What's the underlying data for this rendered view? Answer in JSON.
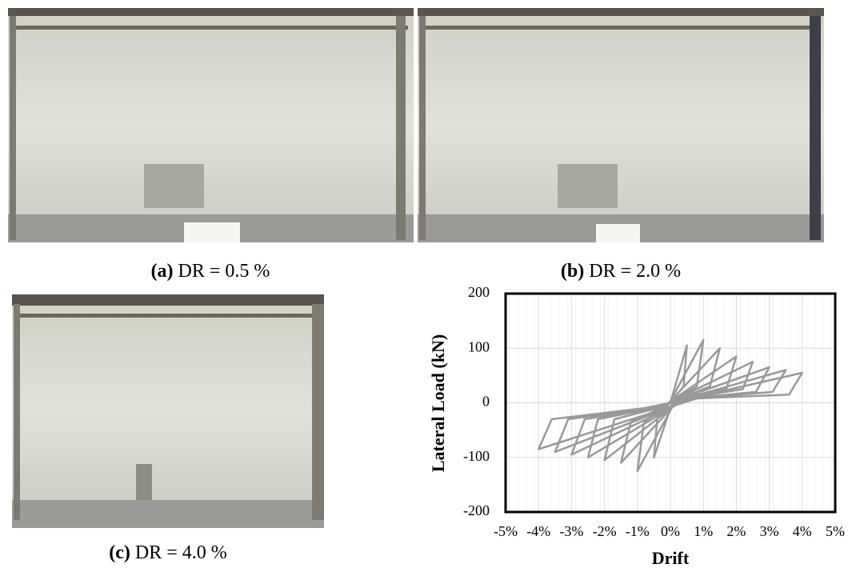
{
  "figure": {
    "panels": [
      {
        "label": "(a)",
        "caption": "DR = 0.5 %"
      },
      {
        "label": "(b)",
        "caption": "DR = 2.0 %"
      },
      {
        "label": "(c)",
        "caption": "DR = 4.0 %"
      }
    ]
  },
  "chart_data": {
    "type": "line",
    "xlabel": "Drift",
    "ylabel": "Lateral Load (kN)",
    "color": "#999999",
    "grid": true,
    "xlim": [
      -5,
      5
    ],
    "ylim": [
      -200,
      200
    ],
    "xticks": [
      {
        "value": -5,
        "label": "-5%"
      },
      {
        "value": -4,
        "label": "-4%"
      },
      {
        "value": -3,
        "label": "-3%"
      },
      {
        "value": -2,
        "label": "-2%"
      },
      {
        "value": -1,
        "label": "-1%"
      },
      {
        "value": 0,
        "label": "0%"
      },
      {
        "value": 1,
        "label": "1%"
      },
      {
        "value": 2,
        "label": "2%"
      },
      {
        "value": 3,
        "label": "3%"
      },
      {
        "value": 4,
        "label": "4%"
      },
      {
        "value": 5,
        "label": "5%"
      }
    ],
    "yticks": [
      -200,
      -100,
      0,
      100,
      200
    ],
    "x": [
      0,
      0.5,
      0.4,
      0.1,
      -0.5,
      -0.4,
      -0.1,
      1,
      0.8,
      0.2,
      -1,
      -0.8,
      -0.2,
      1.5,
      1.2,
      0.3,
      -1.5,
      -1.2,
      -0.3,
      2,
      1.7,
      0.4,
      -2,
      -1.7,
      -0.4,
      2.5,
      2.2,
      0.5,
      -2.5,
      -2.2,
      -0.5,
      3,
      2.6,
      0.6,
      -3,
      -2.6,
      -0.6,
      3.5,
      3.1,
      0.7,
      -3.5,
      -3.1,
      -0.7,
      4,
      3.6,
      0.8,
      -4,
      -3.6,
      -0.8,
      0
    ],
    "values": [
      0,
      105,
      30,
      8,
      -100,
      -30,
      -8,
      115,
      30,
      8,
      -125,
      -35,
      -10,
      100,
      30,
      8,
      -110,
      -35,
      -10,
      85,
      25,
      8,
      -105,
      -30,
      -10,
      75,
      25,
      8,
      -100,
      -30,
      -10,
      65,
      20,
      8,
      -95,
      -30,
      -10,
      60,
      20,
      8,
      -90,
      -30,
      -10,
      55,
      15,
      8,
      -85,
      -30,
      -10,
      0
    ]
  }
}
